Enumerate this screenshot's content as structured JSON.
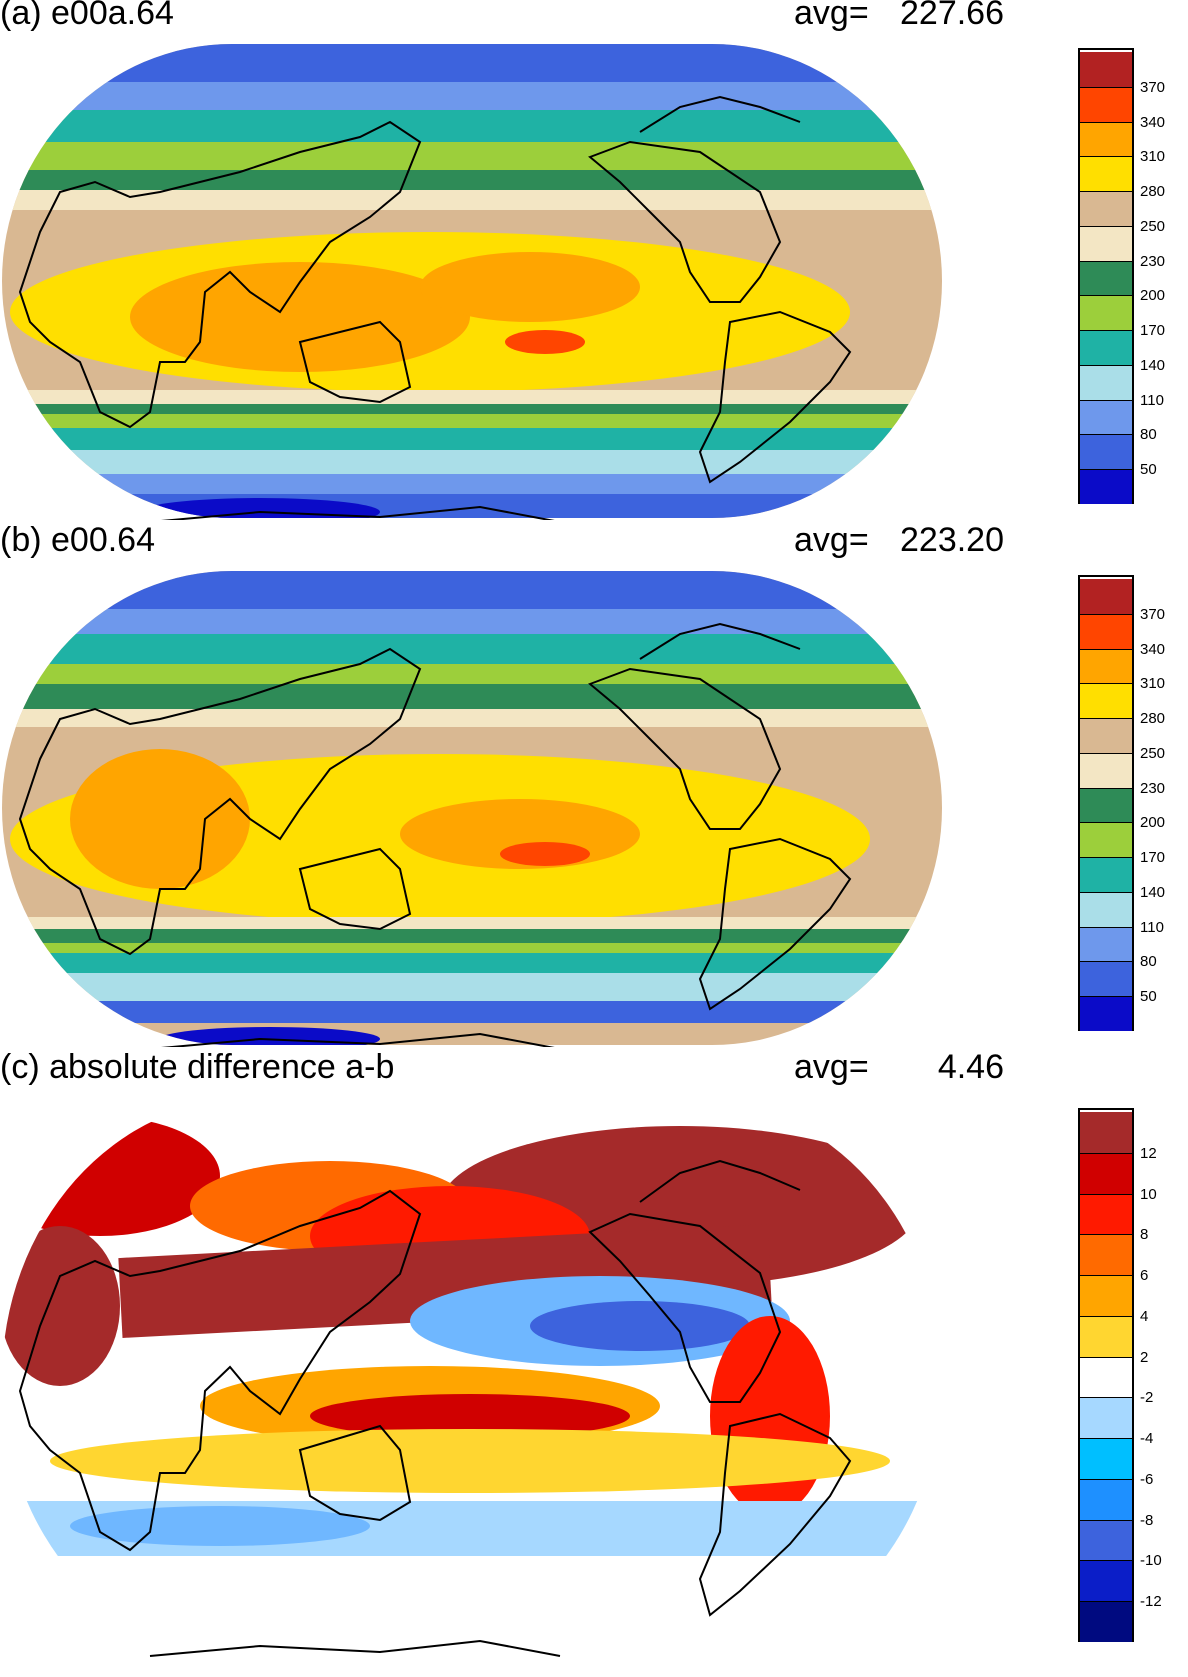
{
  "panels": [
    {
      "title": "(a) e00a.64",
      "avg_label": "avg=",
      "avg_value": "227.66",
      "colorbar": {
        "colors": [
          "#0b0bc8",
          "#3d63dd",
          "#6e98ec",
          "#aadee8",
          "#1fb2a5",
          "#9ccf3b",
          "#2e8b57",
          "#f3e6c4",
          "#d9b892",
          "#ffdf00",
          "#ffa500",
          "#ff4500",
          "#b22222"
        ],
        "labels": [
          "50",
          "80",
          "110",
          "140",
          "170",
          "200",
          "230",
          "250",
          "280",
          "310",
          "340",
          "370"
        ]
      }
    },
    {
      "title": "(b) e00.64",
      "avg_label": "avg=",
      "avg_value": "223.20",
      "colorbar": {
        "colors": [
          "#0b0bc8",
          "#3d63dd",
          "#6e98ec",
          "#aadee8",
          "#1fb2a5",
          "#9ccf3b",
          "#2e8b57",
          "#f3e6c4",
          "#d9b892",
          "#ffdf00",
          "#ffa500",
          "#ff4500",
          "#b22222"
        ],
        "labels": [
          "50",
          "80",
          "110",
          "140",
          "170",
          "200",
          "230",
          "250",
          "280",
          "310",
          "340",
          "370"
        ]
      }
    },
    {
      "title": "(c) absolute difference a-b",
      "avg_label": "avg=",
      "avg_value": "4.46",
      "colorbar": {
        "colors": [
          "#000a80",
          "#0b1ec8",
          "#3d63dd",
          "#1e90ff",
          "#00bfff",
          "#a6d8ff",
          "#ffffff",
          "#ffd630",
          "#ffa500",
          "#ff6a00",
          "#ff1a00",
          "#d00000",
          "#a52a2a"
        ],
        "labels": [
          "-12",
          "-10",
          "-8",
          "-6",
          "-4",
          "-2",
          "2",
          "4",
          "6",
          "8",
          "10",
          "12"
        ]
      }
    }
  ]
}
